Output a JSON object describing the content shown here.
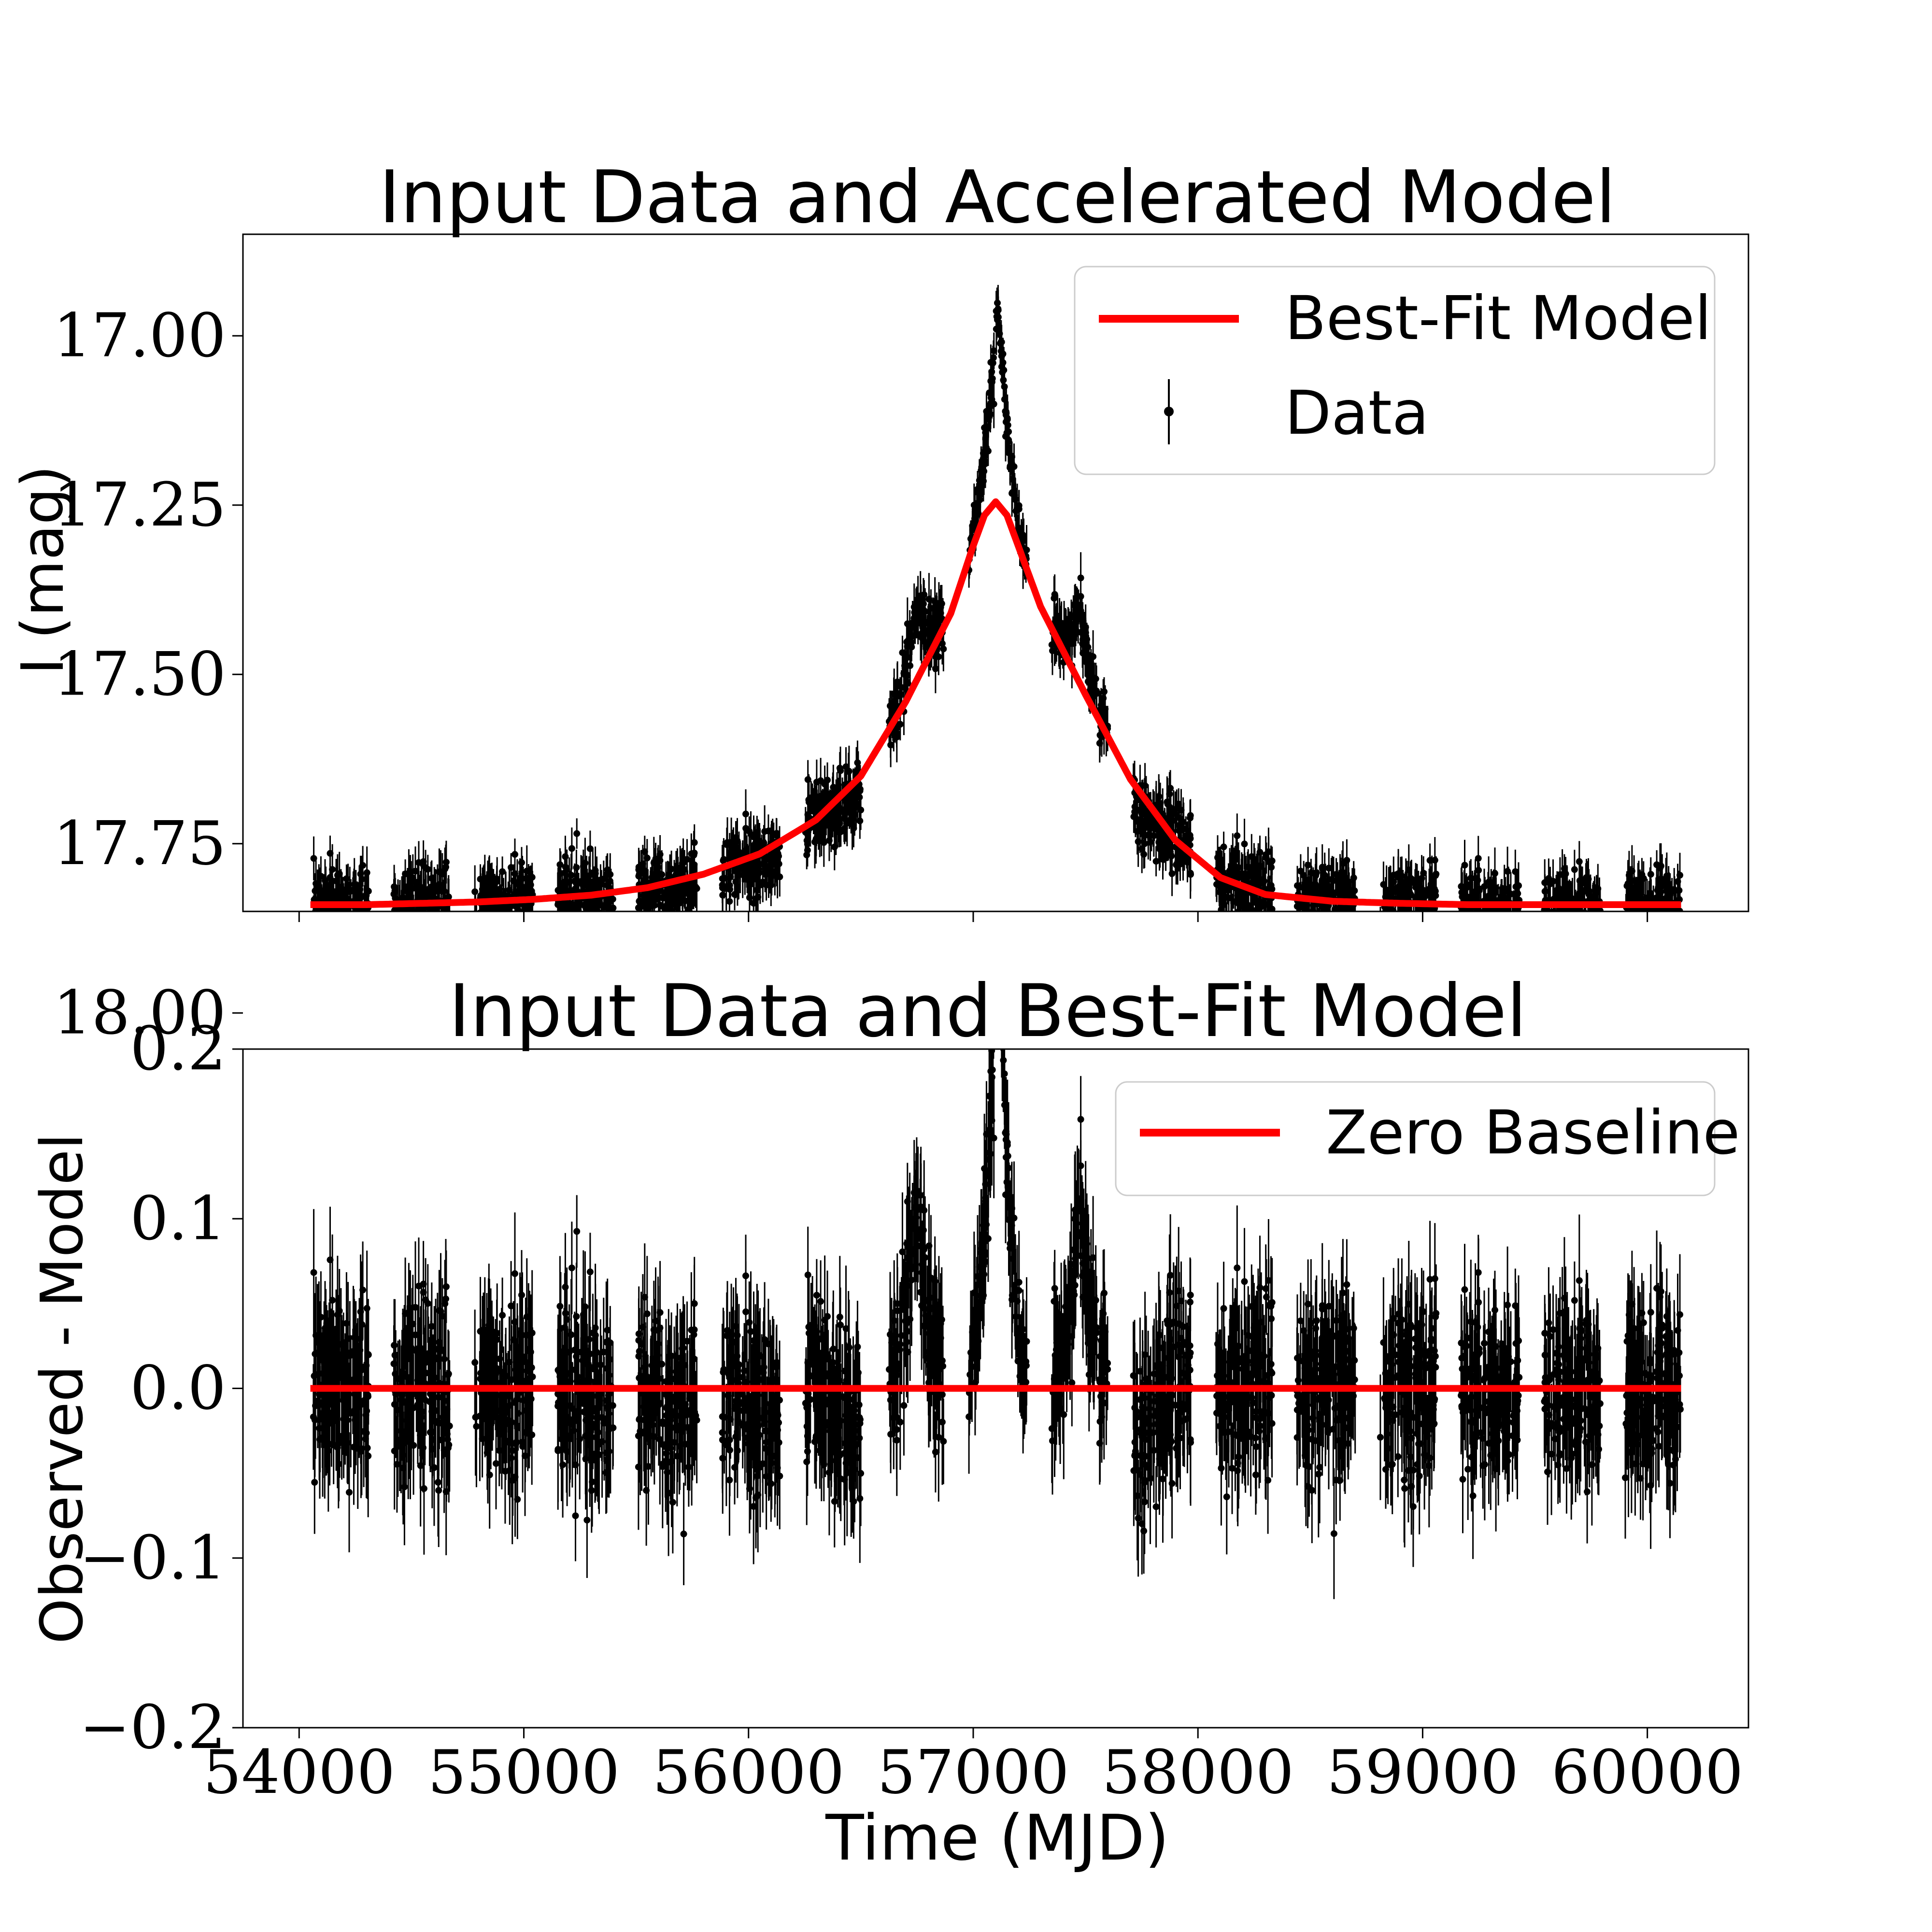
{
  "colors": {
    "model": "#ff0000",
    "data": "#000000",
    "axes": "#000000",
    "background": "#ffffff"
  },
  "chart_data": [
    {
      "type": "line",
      "title": "Input Data and Accelerated Model",
      "xlabel": "",
      "ylabel": "I (mag)",
      "xlim": [
        53750,
        60450
      ],
      "ylim": [
        17.85,
        16.85
      ],
      "y_inverted": true,
      "yticks": [
        17.0,
        17.25,
        17.5,
        17.75,
        18.0
      ],
      "ytick_labels": [
        "17.00",
        "17.25",
        "17.50",
        "17.75",
        "18.00"
      ],
      "xticks": [
        54000,
        55000,
        56000,
        57000,
        58000,
        59000,
        60000
      ],
      "xtick_labels_visible": false,
      "legend": {
        "placement": "top-right",
        "entries": [
          "Best-Fit Model",
          "Data"
        ]
      },
      "series": [
        {
          "name": "Best-Fit Model",
          "kind": "line",
          "x": [
            54050,
            54300,
            54550,
            54800,
            55050,
            55300,
            55550,
            55800,
            56050,
            56300,
            56500,
            56700,
            56900,
            57000,
            57050,
            57100,
            57150,
            57200,
            57300,
            57500,
            57700,
            57900,
            58100,
            58300,
            58600,
            58900,
            59200,
            59500,
            59800,
            60150
          ],
          "y": [
            17.84,
            17.84,
            17.838,
            17.836,
            17.832,
            17.826,
            17.815,
            17.795,
            17.765,
            17.715,
            17.65,
            17.54,
            17.41,
            17.31,
            17.265,
            17.245,
            17.265,
            17.31,
            17.4,
            17.53,
            17.655,
            17.745,
            17.8,
            17.825,
            17.835,
            17.838,
            17.84,
            17.84,
            17.84,
            17.84
          ]
        },
        {
          "name": "Data",
          "kind": "errorbar",
          "seasons": [
            {
              "start": 54060,
              "end": 54310,
              "center_mag": 17.84,
              "scatter": 0.045
            },
            {
              "start": 54420,
              "end": 54670,
              "center_mag": 17.84,
              "scatter": 0.045
            },
            {
              "start": 54780,
              "end": 55040,
              "center_mag": 17.84,
              "scatter": 0.045
            },
            {
              "start": 55150,
              "end": 55400,
              "center_mag": 17.835,
              "scatter": 0.045
            },
            {
              "start": 55510,
              "end": 55770,
              "center_mag": 17.825,
              "scatter": 0.045
            },
            {
              "start": 55880,
              "end": 56140,
              "center_mag": 17.8,
              "scatter": 0.045
            },
            {
              "start": 56250,
              "end": 56500,
              "center_mag": 17.72,
              "scatter": 0.045
            },
            {
              "start": 56620,
              "end": 56870,
              "peak_offset": 0.115,
              "scatter": 0.04
            },
            {
              "start": 56980,
              "end": 57240,
              "peak_offset": 0.27,
              "scatter": 0.035
            },
            {
              "start": 57350,
              "end": 57600,
              "peak_offset": 0.1,
              "scatter": 0.04
            },
            {
              "start": 57710,
              "end": 57970,
              "center_mag": 17.73,
              "scatter": 0.045
            },
            {
              "start": 58080,
              "end": 58330,
              "center_mag": 17.8,
              "scatter": 0.045
            },
            {
              "start": 58440,
              "end": 58700,
              "center_mag": 17.825,
              "scatter": 0.045
            },
            {
              "start": 58810,
              "end": 59060,
              "center_mag": 17.835,
              "scatter": 0.045
            },
            {
              "start": 59170,
              "end": 59430,
              "center_mag": 17.84,
              "scatter": 0.045
            },
            {
              "start": 59540,
              "end": 59790,
              "center_mag": 17.84,
              "scatter": 0.045
            },
            {
              "start": 59900,
              "end": 60150,
              "center_mag": 17.84,
              "scatter": 0.045
            }
          ]
        }
      ]
    },
    {
      "type": "line",
      "title": "Input Data and Best-Fit Model",
      "xlabel": "Time (MJD)",
      "ylabel": "Observed - Model",
      "xlim": [
        53750,
        60450
      ],
      "ylim": [
        -0.2,
        0.2
      ],
      "yticks": [
        -0.2,
        -0.1,
        0.0,
        0.1,
        0.2
      ],
      "ytick_labels": [
        "−0.2",
        "−0.1",
        "0.0",
        "0.1",
        "0.2"
      ],
      "xticks": [
        54000,
        55000,
        56000,
        57000,
        58000,
        59000,
        60000
      ],
      "xtick_labels": [
        "54000",
        "55000",
        "56000",
        "57000",
        "58000",
        "59000",
        "60000"
      ],
      "legend": {
        "placement": "top-right",
        "entries": [
          "Zero Baseline"
        ]
      },
      "series": [
        {
          "name": "Zero Baseline",
          "kind": "line",
          "x": [
            54050,
            60150
          ],
          "y": [
            0,
            0
          ]
        },
        {
          "name": "Data",
          "kind": "errorbar",
          "residual_scatter": 0.035
        }
      ]
    }
  ]
}
